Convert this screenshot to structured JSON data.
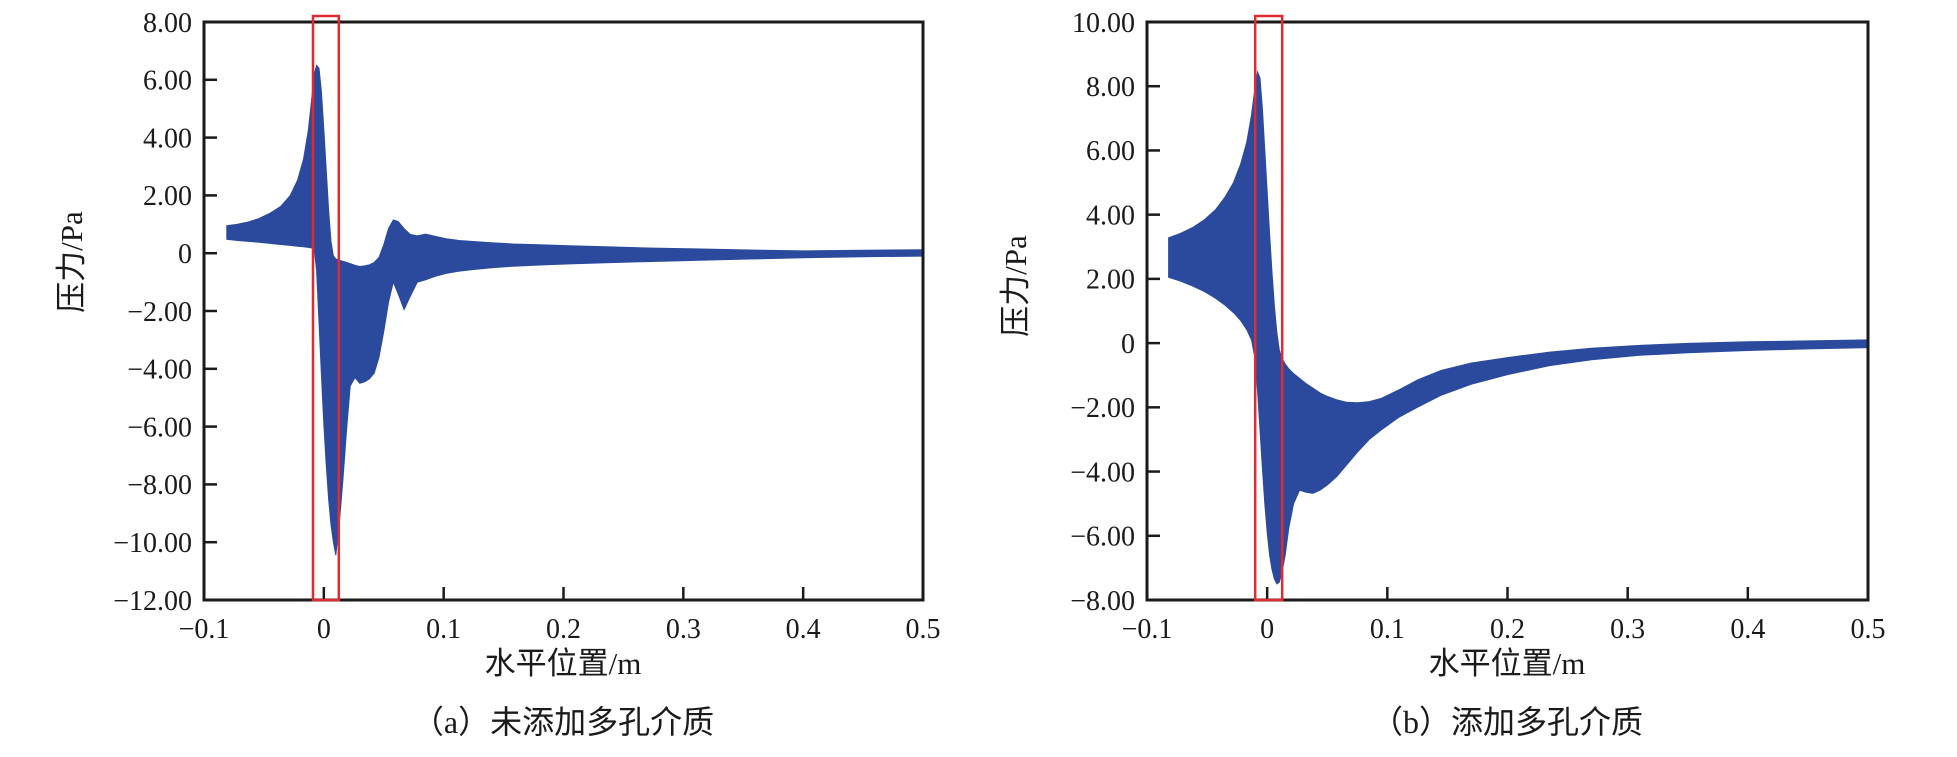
{
  "figure_title": "",
  "colors": {
    "series_blue": "#2b4a9e",
    "highlight_red": "#e02b30",
    "axis_black": "#1a1a1a",
    "background": "#ffffff"
  },
  "chart_data": [
    {
      "id": "a",
      "type": "area",
      "caption": "（a）未添加多孔介质",
      "xlabel": "水平位置/m",
      "ylabel": "压力/Pa",
      "xlim": [
        -0.1,
        0.5
      ],
      "ylim": [
        -12,
        8
      ],
      "grid": false,
      "legend": "none",
      "series_color": "#2b4a9e",
      "x_ticks": [
        {
          "v": -0.1,
          "label": "−0.1"
        },
        {
          "v": 0.0,
          "label": "0"
        },
        {
          "v": 0.1,
          "label": "0.1"
        },
        {
          "v": 0.2,
          "label": "0.2"
        },
        {
          "v": 0.3,
          "label": "0.3"
        },
        {
          "v": 0.4,
          "label": "0.4"
        },
        {
          "v": 0.5,
          "label": "0.5"
        }
      ],
      "y_ticks": [
        {
          "v": 8,
          "label": "8.00"
        },
        {
          "v": 6,
          "label": "6.00"
        },
        {
          "v": 4,
          "label": "4.00"
        },
        {
          "v": 2,
          "label": "2.00"
        },
        {
          "v": 0,
          "label": "0"
        },
        {
          "v": -2,
          "label": "−2.00"
        },
        {
          "v": -4,
          "label": "−4.00"
        },
        {
          "v": -6,
          "label": "−6.00"
        },
        {
          "v": -8,
          "label": "−8.00"
        },
        {
          "v": -10,
          "label": "−10.00"
        },
        {
          "v": -12,
          "label": "−12.00"
        }
      ],
      "highlight_box": {
        "x0": -0.009,
        "x1": 0.0125,
        "color": "#e02b30"
      },
      "envelope": {
        "x": [
          -0.081,
          -0.072,
          -0.063,
          -0.054,
          -0.045,
          -0.036,
          -0.028,
          -0.022,
          -0.017,
          -0.013,
          -0.01,
          -0.008,
          -0.006,
          -0.004,
          -0.002,
          0.0,
          0.002,
          0.004,
          0.006,
          0.008,
          0.01,
          0.013,
          0.016,
          0.019,
          0.022,
          0.026,
          0.03,
          0.034,
          0.038,
          0.042,
          0.046,
          0.05,
          0.054,
          0.058,
          0.062,
          0.067,
          0.072,
          0.078,
          0.085,
          0.093,
          0.102,
          0.113,
          0.126,
          0.14,
          0.158,
          0.18,
          0.205,
          0.235,
          0.27,
          0.31,
          0.355,
          0.4,
          0.45,
          0.5
        ],
        "upper": [
          0.95,
          1.0,
          1.08,
          1.2,
          1.38,
          1.62,
          2.0,
          2.52,
          3.25,
          4.25,
          5.4,
          6.2,
          6.5,
          6.4,
          5.6,
          4.3,
          2.9,
          1.5,
          0.4,
          -0.1,
          -0.2,
          -0.25,
          -0.28,
          -0.32,
          -0.36,
          -0.42,
          -0.46,
          -0.44,
          -0.4,
          -0.32,
          -0.15,
          0.3,
          0.85,
          1.15,
          1.1,
          0.85,
          0.65,
          0.6,
          0.66,
          0.58,
          0.5,
          0.44,
          0.4,
          0.36,
          0.32,
          0.29,
          0.26,
          0.22,
          0.18,
          0.15,
          0.11,
          0.08,
          0.1,
          0.12
        ],
        "lower": [
          0.48,
          0.44,
          0.41,
          0.38,
          0.34,
          0.3,
          0.27,
          0.24,
          0.22,
          0.2,
          0.18,
          0.15,
          -0.6,
          -2.4,
          -4.2,
          -5.9,
          -7.3,
          -8.5,
          -9.4,
          -10.0,
          -10.45,
          -9.3,
          -7.8,
          -6.1,
          -4.6,
          -4.3,
          -4.5,
          -4.45,
          -4.35,
          -4.15,
          -3.6,
          -2.7,
          -1.7,
          -1.0,
          -1.4,
          -1.95,
          -1.5,
          -1.0,
          -0.92,
          -0.8,
          -0.7,
          -0.62,
          -0.56,
          -0.5,
          -0.45,
          -0.41,
          -0.37,
          -0.33,
          -0.29,
          -0.25,
          -0.2,
          -0.16,
          -0.12,
          -0.1
        ]
      }
    },
    {
      "id": "b",
      "type": "area",
      "caption": "（b）添加多孔介质",
      "xlabel": "水平位置/m",
      "ylabel": "压力/Pa",
      "xlim": [
        -0.1,
        0.5
      ],
      "ylim": [
        -8,
        10
      ],
      "grid": false,
      "legend": "none",
      "series_color": "#2b4a9e",
      "x_ticks": [
        {
          "v": -0.1,
          "label": "−0.1"
        },
        {
          "v": 0.0,
          "label": "0"
        },
        {
          "v": 0.1,
          "label": "0.1"
        },
        {
          "v": 0.2,
          "label": "0.2"
        },
        {
          "v": 0.3,
          "label": "0.3"
        },
        {
          "v": 0.4,
          "label": "0.4"
        },
        {
          "v": 0.5,
          "label": "0.5"
        }
      ],
      "y_ticks": [
        {
          "v": 10,
          "label": "10.00"
        },
        {
          "v": 8,
          "label": "8.00"
        },
        {
          "v": 6,
          "label": "6.00"
        },
        {
          "v": 4,
          "label": "4.00"
        },
        {
          "v": 2,
          "label": "2.00"
        },
        {
          "v": 0,
          "label": "0"
        },
        {
          "v": -2,
          "label": "−2.00"
        },
        {
          "v": -4,
          "label": "−4.00"
        },
        {
          "v": -6,
          "label": "−6.00"
        },
        {
          "v": -8,
          "label": "−8.00"
        }
      ],
      "highlight_box": {
        "x0": -0.01,
        "x1": 0.0125,
        "color": "#e02b30"
      },
      "envelope": {
        "x": [
          -0.082,
          -0.072,
          -0.062,
          -0.052,
          -0.043,
          -0.035,
          -0.028,
          -0.022,
          -0.017,
          -0.013,
          -0.01,
          -0.008,
          -0.006,
          -0.004,
          -0.002,
          0.0,
          0.002,
          0.004,
          0.006,
          0.008,
          0.01,
          0.012,
          0.015,
          0.018,
          0.022,
          0.027,
          0.032,
          0.038,
          0.044,
          0.05,
          0.058,
          0.066,
          0.075,
          0.085,
          0.095,
          0.11,
          0.125,
          0.145,
          0.17,
          0.2,
          0.235,
          0.27,
          0.31,
          0.35,
          0.4,
          0.45,
          0.5
        ],
        "upper": [
          3.28,
          3.42,
          3.6,
          3.85,
          4.15,
          4.55,
          5.0,
          5.58,
          6.25,
          7.1,
          8.0,
          8.45,
          8.25,
          7.3,
          6.0,
          4.7,
          3.4,
          2.2,
          1.15,
          0.35,
          -0.2,
          -0.45,
          -0.65,
          -0.8,
          -0.95,
          -1.1,
          -1.25,
          -1.4,
          -1.55,
          -1.66,
          -1.77,
          -1.84,
          -1.86,
          -1.82,
          -1.72,
          -1.45,
          -1.15,
          -0.85,
          -0.62,
          -0.45,
          -0.28,
          -0.16,
          -0.07,
          -0.01,
          0.04,
          0.07,
          0.1
        ],
        "lower": [
          2.05,
          1.93,
          1.78,
          1.6,
          1.4,
          1.18,
          0.95,
          0.7,
          0.42,
          0.1,
          -0.5,
          -1.5,
          -2.7,
          -3.9,
          -5.0,
          -5.9,
          -6.6,
          -7.05,
          -7.35,
          -7.5,
          -7.45,
          -7.2,
          -6.6,
          -5.75,
          -5.0,
          -4.58,
          -4.64,
          -4.68,
          -4.58,
          -4.42,
          -4.15,
          -3.8,
          -3.4,
          -3.0,
          -2.7,
          -2.3,
          -2.0,
          -1.62,
          -1.28,
          -0.98,
          -0.7,
          -0.52,
          -0.38,
          -0.3,
          -0.23,
          -0.18,
          -0.14
        ]
      }
    }
  ]
}
